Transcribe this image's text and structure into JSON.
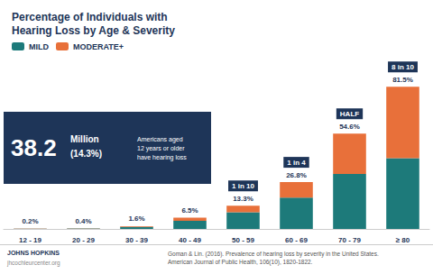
{
  "chart_data": {
    "type": "bar",
    "title": "Percentage of Individuals with\nHearing Loss by Age & Severity",
    "categories": [
      "12 - 19",
      "20 - 29",
      "30 - 39",
      "40 - 49",
      "50 - 59",
      "60 - 69",
      "70 - 79",
      "≥ 80"
    ],
    "series": [
      {
        "name": "MILD",
        "color": "#1d7a7a",
        "values": [
          0.13,
          0.27,
          1.1,
          4.6,
          9.5,
          18.0,
          31.5,
          40.5
        ]
      },
      {
        "name": "MODERATE+",
        "color": "#e8703a",
        "values": [
          0.07,
          0.13,
          0.5,
          1.9,
          3.8,
          8.8,
          23.1,
          41.0
        ]
      }
    ],
    "totals": {
      "values": [
        0.2,
        0.4,
        1.6,
        6.5,
        13.3,
        26.8,
        54.6,
        81.5
      ],
      "value_labels": [
        "0.2%",
        "0.4%",
        "1.6%",
        "6.5%",
        "13.3%",
        "26.8%",
        "54.6%",
        "81.5%"
      ]
    },
    "ratio_labels": [
      null,
      null,
      null,
      null,
      "1 in 10",
      "1 in 4",
      "HALF",
      "8 in 10"
    ],
    "stat": {
      "number": "38.2",
      "unit": "Million",
      "pct": "(14.3%)",
      "text": "Americans aged\n12 years or older\nhave hearing loss"
    },
    "footer": [
      "JOHNS HOPKINS",
      "jhcochleurcenter.org"
    ],
    "citation": "Goman & Lin. (2016). Prevalence of hearing loss by severity in the United States.\nAmerican Journal of Public Health, 106(10), 1820-1822.",
    "ylim": [
      0,
      95
    ],
    "stacked": true,
    "grid": false,
    "legend": "upper left",
    "tick_labels": "x"
  }
}
